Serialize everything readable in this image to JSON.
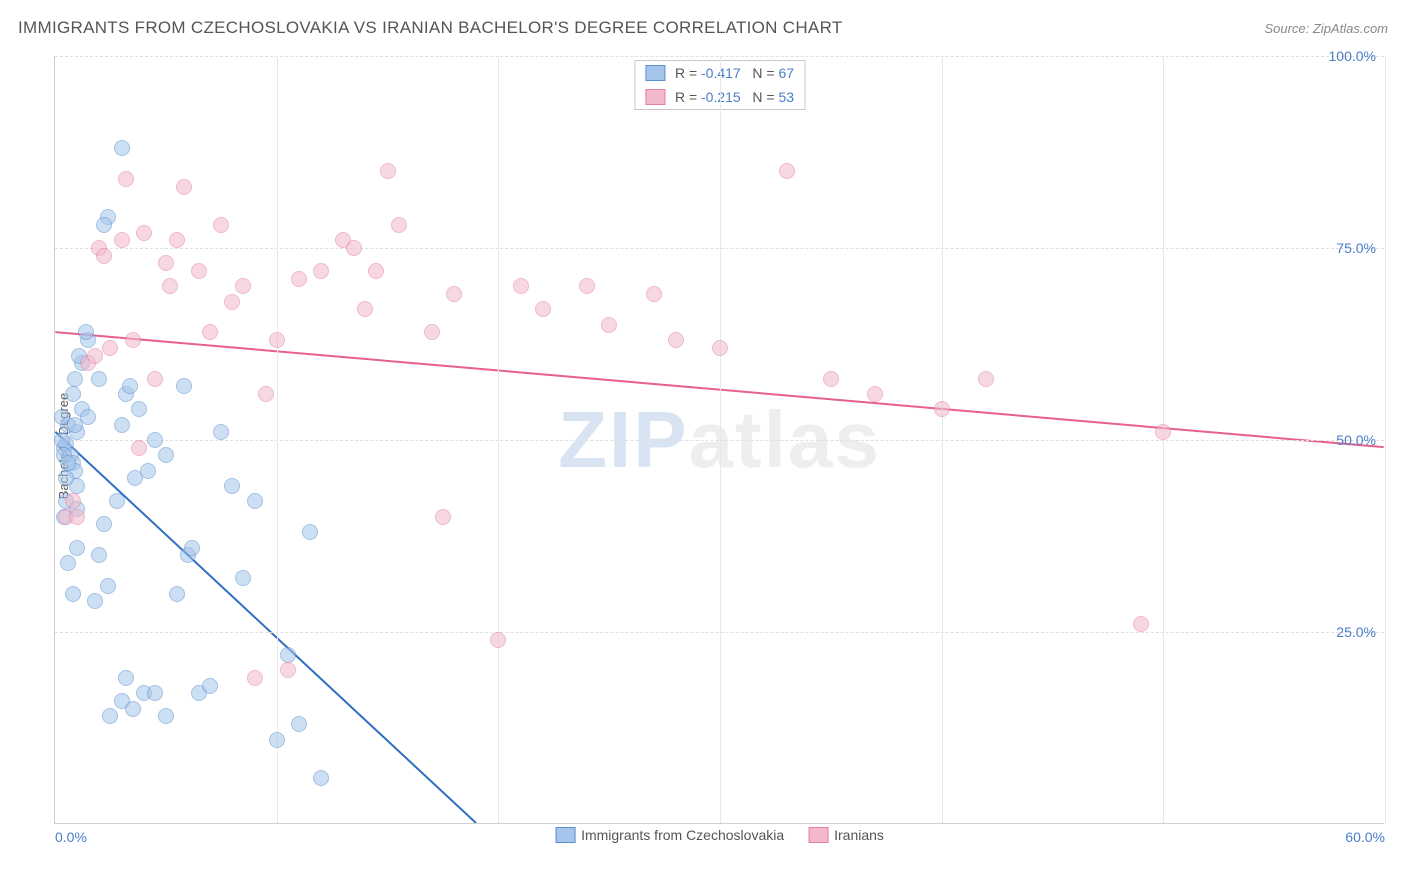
{
  "title": "IMMIGRANTS FROM CZECHOSLOVAKIA VS IRANIAN BACHELOR'S DEGREE CORRELATION CHART",
  "source": "Source: ZipAtlas.com",
  "ylabel": "Bachelor's Degree",
  "watermark": {
    "accent": "ZIP",
    "rest": "atlas"
  },
  "chart": {
    "type": "scatter",
    "background_color": "#ffffff",
    "grid_color": "#e0e0e0",
    "axis_color": "#d0d0d0",
    "label_color": "#555555",
    "tick_color": "#4a7ec9",
    "title_fontsize": 17,
    "tick_fontsize": 14,
    "xlim": [
      0,
      60
    ],
    "ylim": [
      0,
      100
    ],
    "xticks": [
      0,
      60
    ],
    "xtick_labels": [
      "0.0%",
      "60.0%"
    ],
    "yticks": [
      25,
      50,
      75,
      100
    ],
    "ytick_labels": [
      "25.0%",
      "50.0%",
      "75.0%",
      "100.0%"
    ],
    "x_gridlines": [
      10,
      20,
      30,
      40,
      50,
      60
    ],
    "marker_size": 16,
    "marker_opacity": 0.55,
    "line_width": 2,
    "series": [
      {
        "name": "Immigrants from Czechoslovakia",
        "fill_color": "#a6c5ea",
        "stroke_color": "#5a8fcf",
        "line_color": "#2e6fc2",
        "R": "-0.417",
        "N": "67",
        "trend": {
          "x1": 0,
          "y1": 51,
          "x2": 19,
          "y2": 0
        },
        "points": [
          [
            0.4,
            49
          ],
          [
            0.5,
            49.5
          ],
          [
            0.7,
            48
          ],
          [
            0.3,
            50
          ],
          [
            0.8,
            47
          ],
          [
            0.6,
            52
          ],
          [
            0.9,
            46
          ],
          [
            1.0,
            44
          ],
          [
            0.5,
            42
          ],
          [
            0.4,
            40
          ],
          [
            1.2,
            54
          ],
          [
            0.8,
            56
          ],
          [
            1.5,
            53
          ],
          [
            1.0,
            51
          ],
          [
            2.0,
            58
          ],
          [
            2.4,
            79
          ],
          [
            2.2,
            78
          ],
          [
            3.0,
            88
          ],
          [
            3.2,
            56
          ],
          [
            3.4,
            57
          ],
          [
            3.0,
            52
          ],
          [
            3.8,
            54
          ],
          [
            4.2,
            46
          ],
          [
            4.5,
            50
          ],
          [
            5.0,
            48
          ],
          [
            5.5,
            30
          ],
          [
            6.0,
            35
          ],
          [
            6.2,
            36
          ],
          [
            5.8,
            57
          ],
          [
            6.5,
            17
          ],
          [
            7.0,
            18
          ],
          [
            7.5,
            51
          ],
          [
            8.0,
            44
          ],
          [
            8.5,
            32
          ],
          [
            9.0,
            42
          ],
          [
            10.0,
            11
          ],
          [
            10.5,
            22
          ],
          [
            11.0,
            13
          ],
          [
            11.5,
            38
          ],
          [
            12.0,
            6
          ],
          [
            2.5,
            14
          ],
          [
            3.0,
            16
          ],
          [
            4.0,
            17
          ],
          [
            4.5,
            17
          ],
          [
            5.0,
            14
          ],
          [
            3.2,
            19
          ],
          [
            3.5,
            15
          ],
          [
            2.0,
            35
          ],
          [
            2.2,
            39
          ],
          [
            2.4,
            31
          ],
          [
            1.0,
            36
          ],
          [
            0.6,
            34
          ],
          [
            0.8,
            30
          ],
          [
            1.8,
            29
          ],
          [
            1.5,
            63
          ],
          [
            1.2,
            60
          ],
          [
            0.9,
            58
          ],
          [
            1.1,
            61
          ],
          [
            0.3,
            53
          ],
          [
            0.4,
            48
          ],
          [
            0.6,
            47
          ],
          [
            0.5,
            45
          ],
          [
            1.4,
            64
          ],
          [
            1.0,
            41
          ],
          [
            2.8,
            42
          ],
          [
            3.6,
            45
          ],
          [
            0.9,
            52
          ]
        ]
      },
      {
        "name": "Iranians",
        "fill_color": "#f2b9cb",
        "stroke_color": "#e57fa5",
        "line_color": "#e85f91",
        "R": "-0.215",
        "N": "53",
        "trend": {
          "x1": 0,
          "y1": 64,
          "x2": 60,
          "y2": 49
        },
        "points": [
          [
            0.5,
            40
          ],
          [
            0.8,
            42
          ],
          [
            1.5,
            60
          ],
          [
            1.8,
            61
          ],
          [
            2.0,
            75
          ],
          [
            2.2,
            74
          ],
          [
            2.5,
            62
          ],
          [
            3.0,
            76
          ],
          [
            3.2,
            84
          ],
          [
            3.5,
            63
          ],
          [
            4.0,
            77
          ],
          [
            4.5,
            58
          ],
          [
            5.0,
            73
          ],
          [
            5.2,
            70
          ],
          [
            5.5,
            76
          ],
          [
            5.8,
            83
          ],
          [
            6.5,
            72
          ],
          [
            7.0,
            64
          ],
          [
            7.5,
            78
          ],
          [
            8.0,
            68
          ],
          [
            8.5,
            70
          ],
          [
            9.0,
            19
          ],
          [
            9.5,
            56
          ],
          [
            10.0,
            63
          ],
          [
            10.5,
            20
          ],
          [
            11.0,
            71
          ],
          [
            12.0,
            72
          ],
          [
            13.0,
            76
          ],
          [
            13.5,
            75
          ],
          [
            14.0,
            67
          ],
          [
            14.5,
            72
          ],
          [
            15.0,
            85
          ],
          [
            15.5,
            78
          ],
          [
            17.0,
            64
          ],
          [
            17.5,
            40
          ],
          [
            18.0,
            69
          ],
          [
            20.0,
            24
          ],
          [
            21.0,
            70
          ],
          [
            22.0,
            67
          ],
          [
            24.0,
            70
          ],
          [
            25.0,
            65
          ],
          [
            27.0,
            69
          ],
          [
            28.0,
            63
          ],
          [
            30.0,
            62
          ],
          [
            33.0,
            85
          ],
          [
            35.0,
            58
          ],
          [
            37.0,
            56
          ],
          [
            40.0,
            54
          ],
          [
            42.0,
            58
          ],
          [
            49.0,
            26
          ],
          [
            50.0,
            51
          ],
          [
            3.8,
            49
          ],
          [
            1.0,
            40
          ]
        ]
      }
    ]
  },
  "legend_bottom": [
    {
      "label": "Immigrants from Czechoslovakia",
      "fill": "#a6c5ea",
      "stroke": "#5a8fcf"
    },
    {
      "label": "Iranians",
      "fill": "#f2b9cb",
      "stroke": "#e57fa5"
    }
  ]
}
